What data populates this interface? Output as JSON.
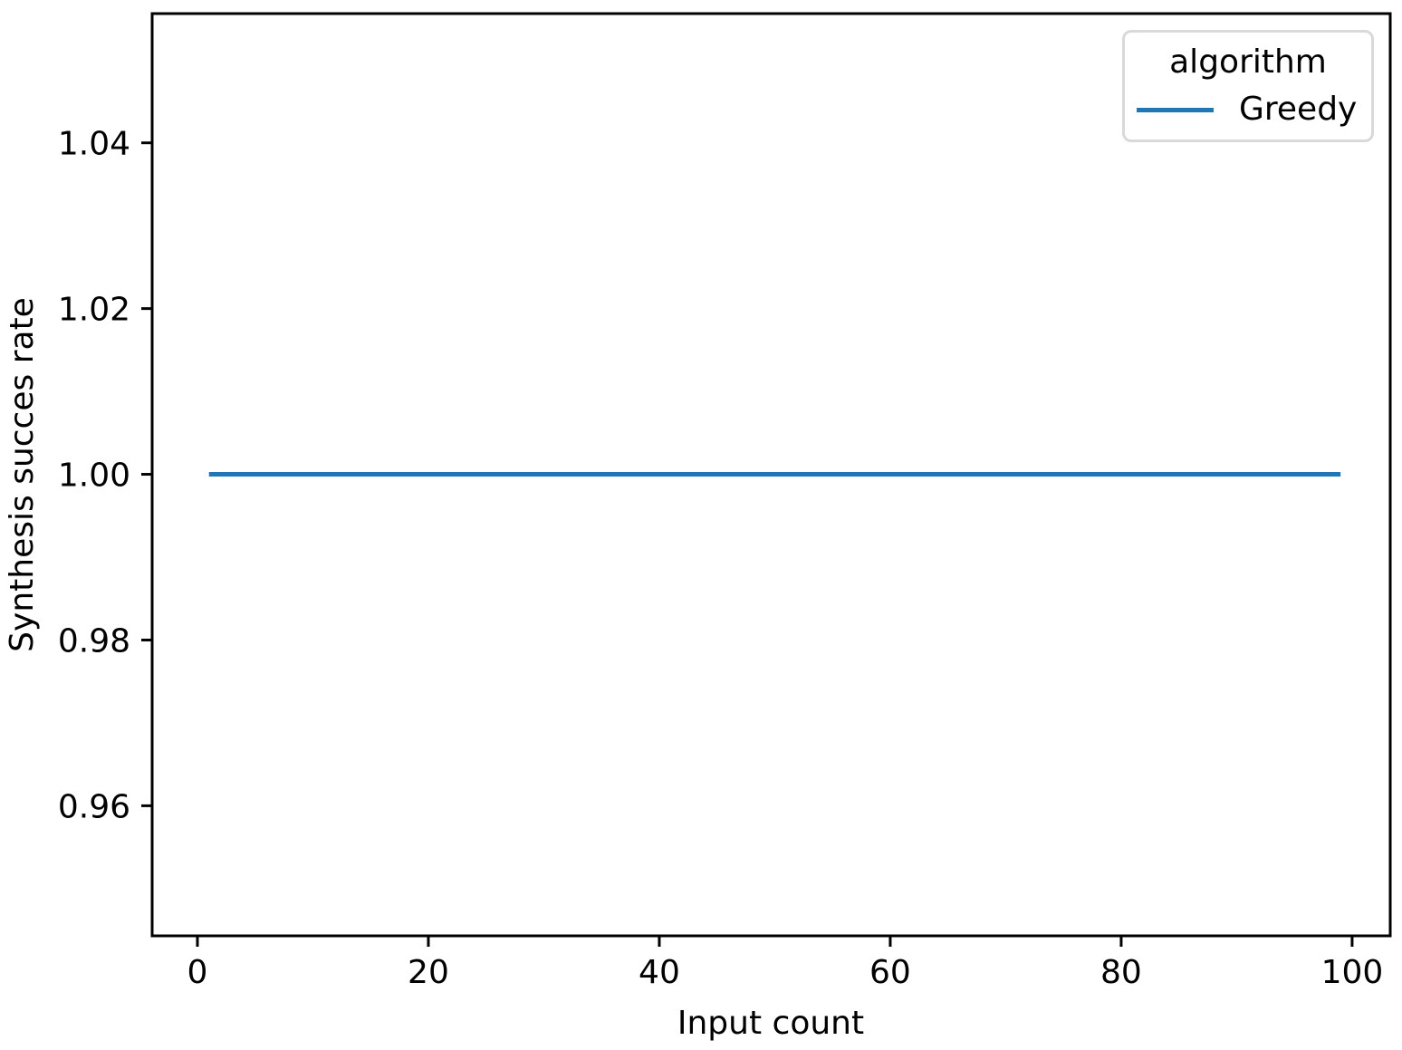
{
  "colors": {
    "background": "#ffffff",
    "axes": "#000000",
    "text": "#000000",
    "legend_border": "#d9d9d9"
  },
  "chart_data": {
    "type": "line",
    "title": "",
    "xlabel": "Input count",
    "ylabel": "Synthesis succes rate",
    "xlim": [
      -3.92,
      103.3
    ],
    "ylim": [
      0.9443,
      1.0556
    ],
    "x_ticks": [
      0,
      20,
      40,
      60,
      80,
      100
    ],
    "x_tick_labels": [
      "0",
      "20",
      "40",
      "60",
      "80",
      "100"
    ],
    "y_ticks": [
      0.96,
      0.98,
      1.0,
      1.02,
      1.04
    ],
    "y_tick_labels": [
      "0.96",
      "0.98",
      "1.00",
      "1.02",
      "1.04"
    ],
    "grid": false,
    "legend": {
      "title": "algorithm",
      "position": "upper right"
    },
    "series": [
      {
        "name": "Greedy",
        "color": "#1f77b4",
        "x": [
          1,
          99
        ],
        "y": [
          1.0,
          1.0
        ]
      }
    ]
  }
}
